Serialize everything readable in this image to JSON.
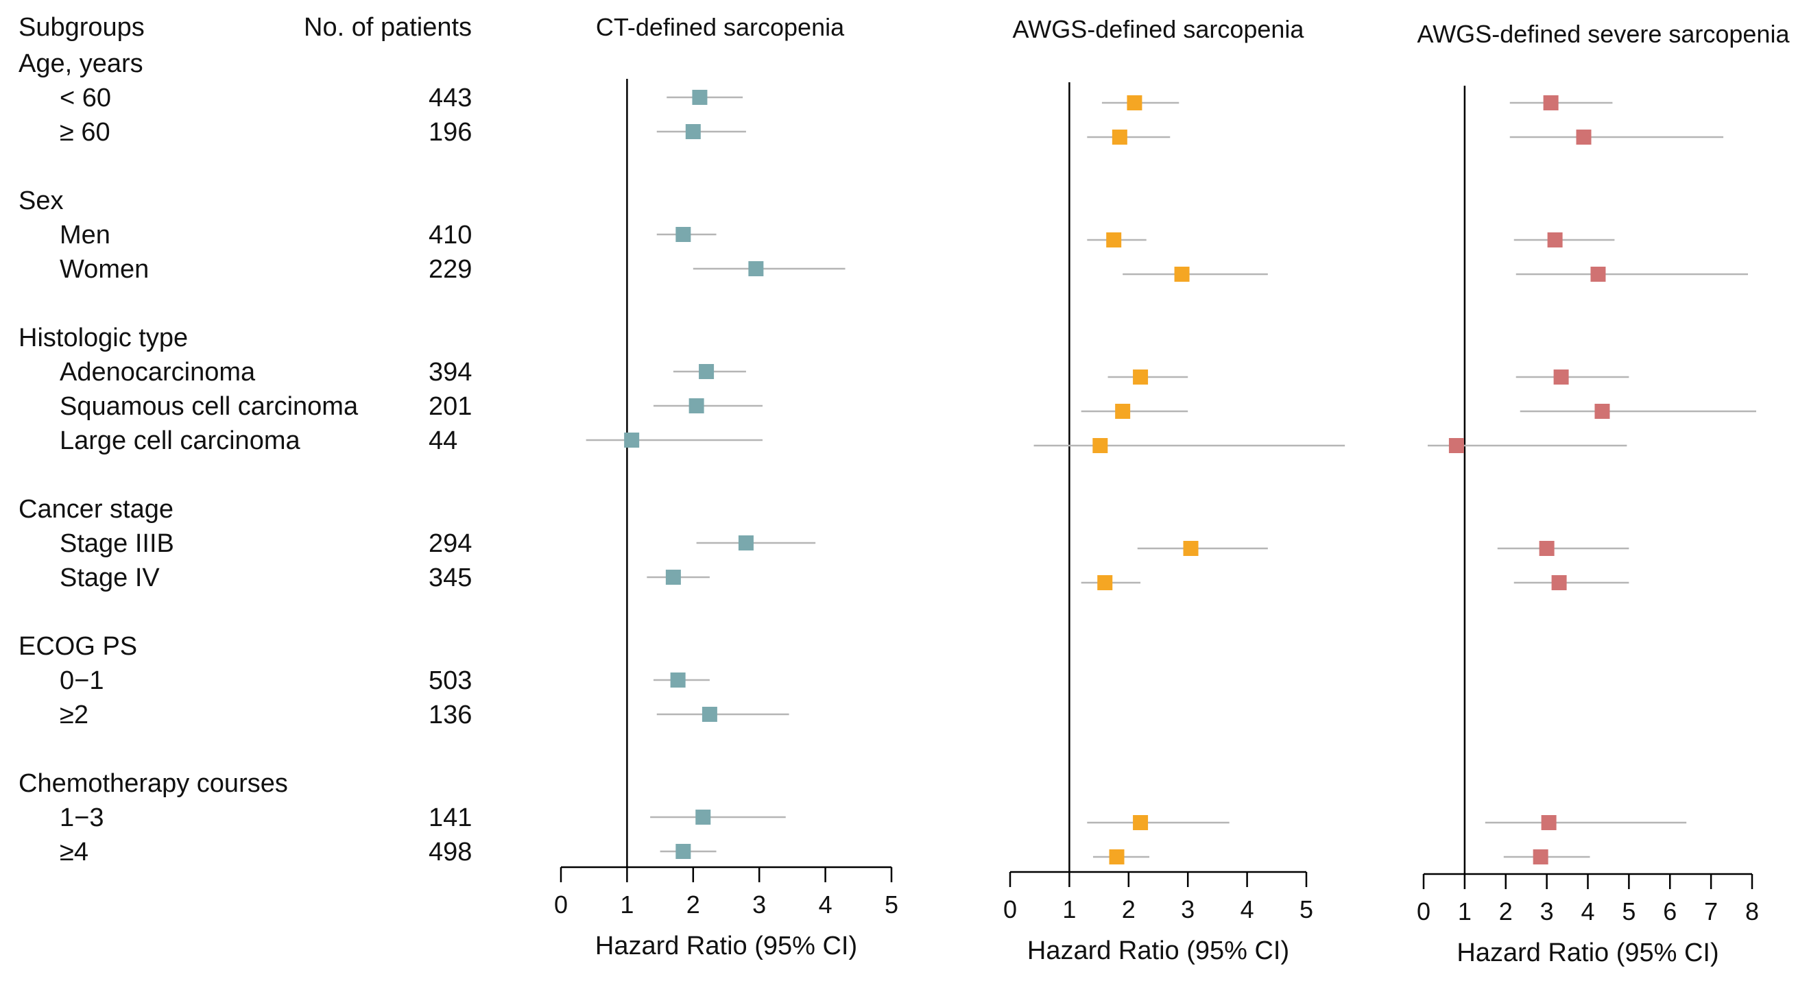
{
  "header": {
    "subgroups_label": "Subgroups",
    "patients_label": "No. of patients"
  },
  "rows": [
    {
      "type": "group",
      "label": "Age, years"
    },
    {
      "type": "sub",
      "label": "< 60",
      "n": "443"
    },
    {
      "type": "sub",
      "label": "≥ 60",
      "n": "196"
    },
    {
      "type": "group",
      "label": "Sex"
    },
    {
      "type": "sub",
      "label": "Men",
      "n": "410"
    },
    {
      "type": "sub",
      "label": "Women",
      "n": "229"
    },
    {
      "type": "group",
      "label": "Histologic type"
    },
    {
      "type": "sub",
      "label": "Adenocarcinoma",
      "n": "394"
    },
    {
      "type": "sub",
      "label": "Squamous  cell carcinoma",
      "n": "201"
    },
    {
      "type": "sub",
      "label": "Large cell carcinoma",
      "n": "44"
    },
    {
      "type": "group",
      "label": "Cancer stage"
    },
    {
      "type": "sub",
      "label": "Stage IIIB",
      "n": "294"
    },
    {
      "type": "sub",
      "label": "Stage IV",
      "n": "345"
    },
    {
      "type": "group",
      "label": "ECOG PS"
    },
    {
      "type": "sub",
      "label": "0−1",
      "n": "503"
    },
    {
      "type": "sub",
      "label": " ≥2",
      "n": "136"
    },
    {
      "type": "group",
      "label": "Chemotherapy courses"
    },
    {
      "type": "sub",
      "label": "1−3",
      "n": "141"
    },
    {
      "type": "sub",
      "label": "≥4",
      "n": "498"
    }
  ],
  "chart_data": [
    {
      "type": "forest",
      "title": "CT-defined sarcopenia",
      "xlabel": "Hazard Ratio (95% CI)",
      "xlim": [
        0,
        5
      ],
      "xticks": [
        0,
        1,
        2,
        3,
        4,
        5
      ],
      "reference_line": 1,
      "color": "#7aa8ad",
      "points": [
        {
          "row": 1,
          "hr": 2.1,
          "lo": 1.6,
          "hi": 2.75
        },
        {
          "row": 2,
          "hr": 2.0,
          "lo": 1.45,
          "hi": 2.8
        },
        {
          "row": 4,
          "hr": 1.85,
          "lo": 1.45,
          "hi": 2.35
        },
        {
          "row": 5,
          "hr": 2.95,
          "lo": 2.0,
          "hi": 4.3
        },
        {
          "row": 7,
          "hr": 2.2,
          "lo": 1.7,
          "hi": 2.8
        },
        {
          "row": 8,
          "hr": 2.05,
          "lo": 1.4,
          "hi": 3.05
        },
        {
          "row": 9,
          "hr": 1.07,
          "lo": 0.38,
          "hi": 3.05
        },
        {
          "row": 11,
          "hr": 2.8,
          "lo": 2.05,
          "hi": 3.85
        },
        {
          "row": 12,
          "hr": 1.7,
          "lo": 1.3,
          "hi": 2.25
        },
        {
          "row": 14,
          "hr": 1.77,
          "lo": 1.4,
          "hi": 2.25
        },
        {
          "row": 15,
          "hr": 2.25,
          "lo": 1.45,
          "hi": 3.45
        },
        {
          "row": 17,
          "hr": 2.15,
          "lo": 1.35,
          "hi": 3.4
        },
        {
          "row": 18,
          "hr": 1.85,
          "lo": 1.5,
          "hi": 2.35
        }
      ]
    },
    {
      "type": "forest",
      "title": "AWGS-defined sarcopenia",
      "xlabel": "Hazard Ratio (95% CI)",
      "xlim": [
        0,
        5
      ],
      "xticks": [
        0,
        1,
        2,
        3,
        4,
        5
      ],
      "reference_line": 1,
      "color": "#f5a623",
      "points": [
        {
          "row": 1,
          "hr": 2.1,
          "lo": 1.55,
          "hi": 2.85
        },
        {
          "row": 2,
          "hr": 1.85,
          "lo": 1.3,
          "hi": 2.7
        },
        {
          "row": 4,
          "hr": 1.75,
          "lo": 1.3,
          "hi": 2.3
        },
        {
          "row": 5,
          "hr": 2.9,
          "lo": 1.9,
          "hi": 4.35
        },
        {
          "row": 7,
          "hr": 2.2,
          "lo": 1.65,
          "hi": 3.0
        },
        {
          "row": 8,
          "hr": 1.9,
          "lo": 1.2,
          "hi": 3.0
        },
        {
          "row": 9,
          "hr": 1.52,
          "lo": 0.4,
          "hi": 5.65
        },
        {
          "row": 11,
          "hr": 3.05,
          "lo": 2.15,
          "hi": 4.35
        },
        {
          "row": 12,
          "hr": 1.6,
          "lo": 1.2,
          "hi": 2.2
        },
        {
          "row": 17,
          "hr": 2.2,
          "lo": 1.3,
          "hi": 3.7
        },
        {
          "row": 18,
          "hr": 1.8,
          "lo": 1.4,
          "hi": 2.35
        }
      ]
    },
    {
      "type": "forest",
      "title": "AWGS-defined severe sarcopenia",
      "xlabel": "Hazard Ratio (95% CI)",
      "xlim": [
        0,
        8
      ],
      "xticks": [
        0,
        1,
        2,
        3,
        4,
        5,
        6,
        7,
        8
      ],
      "reference_line": 1,
      "color": "#d07272",
      "points": [
        {
          "row": 1,
          "hr": 3.1,
          "lo": 2.1,
          "hi": 4.6
        },
        {
          "row": 2,
          "hr": 3.9,
          "lo": 2.1,
          "hi": 7.3
        },
        {
          "row": 4,
          "hr": 3.2,
          "lo": 2.2,
          "hi": 4.65
        },
        {
          "row": 5,
          "hr": 4.25,
          "lo": 2.25,
          "hi": 7.9
        },
        {
          "row": 7,
          "hr": 3.35,
          "lo": 2.25,
          "hi": 5.0
        },
        {
          "row": 8,
          "hr": 4.35,
          "lo": 2.35,
          "hi": 8.1
        },
        {
          "row": 9,
          "hr": 0.8,
          "lo": 0.1,
          "hi": 4.95
        },
        {
          "row": 11,
          "hr": 3.0,
          "lo": 1.8,
          "hi": 5.0
        },
        {
          "row": 12,
          "hr": 3.3,
          "lo": 2.2,
          "hi": 5.0
        },
        {
          "row": 17,
          "hr": 3.05,
          "lo": 1.5,
          "hi": 6.4
        },
        {
          "row": 18,
          "hr": 2.85,
          "lo": 1.95,
          "hi": 4.05
        }
      ]
    }
  ]
}
